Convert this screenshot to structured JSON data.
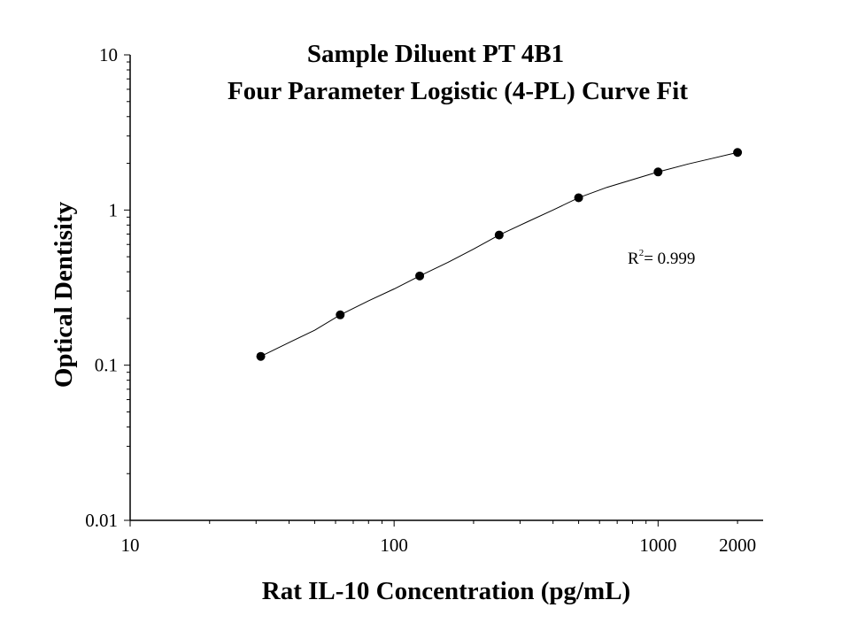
{
  "chart_data": {
    "type": "scatter",
    "title": "Sample Diluent PT 4B1",
    "subtitle": "Four Parameter Logistic (4-PL) Curve Fit",
    "xlabel": "Rat IL-10 Concentration (pg/mL)",
    "ylabel": "Optical Dentisity",
    "x_scale": "log",
    "y_scale": "log",
    "xlim": [
      10,
      2500
    ],
    "ylim": [
      0.01,
      10
    ],
    "x_ticks": [
      10,
      100,
      1000,
      2000
    ],
    "x_tick_labels": [
      "10",
      "100",
      "1000",
      "2000"
    ],
    "y_ticks": [
      0.01,
      0.1,
      1,
      10
    ],
    "y_tick_labels": [
      "0.01",
      "0.1",
      "1",
      "10"
    ],
    "grid": false,
    "legend": "none",
    "annotation": {
      "base": "R",
      "superscript": "2",
      "text": "= 0.999"
    },
    "series": [
      {
        "x": [
          31.25,
          62.5,
          125,
          250,
          500,
          1000,
          2000
        ],
        "y": [
          0.114,
          0.211,
          0.376,
          0.69,
          1.2,
          1.76,
          2.35
        ]
      }
    ],
    "fit_curve": {
      "x": [
        31.25,
        40,
        50,
        62.5,
        80,
        100,
        125,
        160,
        200,
        250,
        320,
        400,
        500,
        640,
        800,
        1000,
        1300,
        1600,
        2000
      ],
      "y": [
        0.114,
        0.14,
        0.168,
        0.211,
        0.26,
        0.31,
        0.376,
        0.46,
        0.56,
        0.69,
        0.84,
        1.0,
        1.2,
        1.4,
        1.57,
        1.76,
        1.98,
        2.15,
        2.35
      ]
    },
    "colors": {
      "points": "#000000",
      "curve": "#000000",
      "axes": "#000000"
    }
  }
}
